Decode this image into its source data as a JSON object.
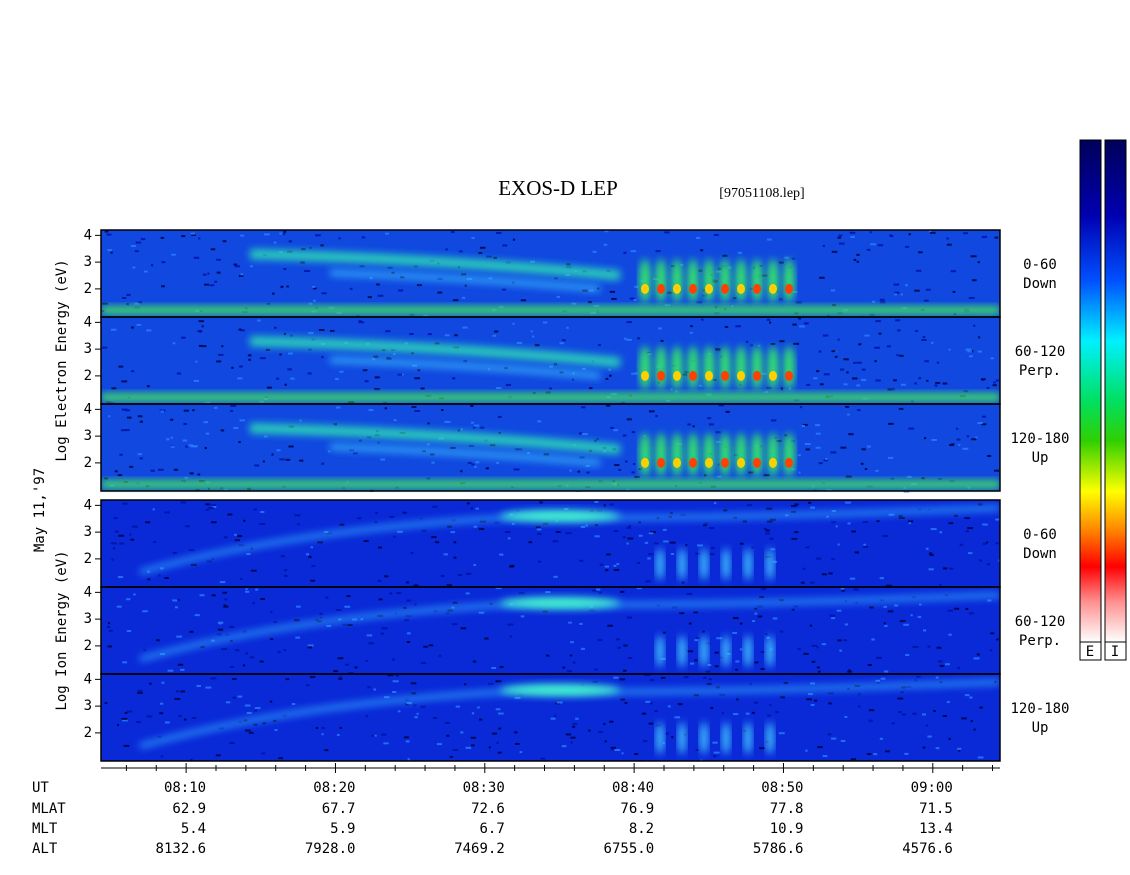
{
  "chart_data": {
    "type": "spectrogram",
    "title": "EXOS-D LEP",
    "subtitle": "[97051108.lep]",
    "date_label": "May 11,'97",
    "xlim": [
      4.3,
      64.5
    ],
    "xticks": [
      {
        "value": 10,
        "label": "08:10"
      },
      {
        "value": 20,
        "label": "08:20"
      },
      {
        "value": 30,
        "label": "08:30"
      },
      {
        "value": 40,
        "label": "08:40"
      },
      {
        "value": 50,
        "label": "08:50"
      },
      {
        "value": 60,
        "label": "09:00"
      }
    ],
    "xminorticks": [
      6,
      8,
      12,
      14,
      16,
      18,
      22,
      24,
      26,
      28,
      32,
      34,
      36,
      38,
      42,
      44,
      46,
      48,
      52,
      54,
      56,
      58,
      62,
      64
    ],
    "ephemeris": [
      {
        "name": "UT"
      },
      {
        "name": "MLAT",
        "values": [
          "62.9",
          "67.7",
          "72.6",
          "76.9",
          "77.8",
          "71.5"
        ]
      },
      {
        "name": "MLT",
        "values": [
          "5.4",
          "5.9",
          "6.7",
          "8.2",
          "10.9",
          "13.4"
        ]
      },
      {
        "name": "ALT",
        "values": [
          "8132.6",
          "7928.0",
          "7469.2",
          "6755.0",
          "5786.6",
          "4576.6"
        ]
      }
    ],
    "groups": [
      {
        "label": "Log  Electron  Energy (eV)",
        "panels": [
          {
            "pitch": "0-60",
            "direction": "Down",
            "ylim": [
              0.95,
              4.2
            ],
            "yticks": [
              2,
              3,
              4
            ]
          },
          {
            "pitch": "60-120",
            "direction": "Perp.",
            "ylim": [
              0.95,
              4.2
            ],
            "yticks": [
              2,
              3,
              4
            ]
          },
          {
            "pitch": "120-180",
            "direction": "Up",
            "ylim": [
              0.95,
              4.2
            ],
            "yticks": [
              2,
              3,
              4
            ]
          }
        ]
      },
      {
        "label": "Log  Ion  Energy (eV)",
        "panels": [
          {
            "pitch": "0-60",
            "direction": "Down",
            "ylim": [
              0.95,
              4.2
            ],
            "yticks": [
              2,
              3,
              4
            ]
          },
          {
            "pitch": "60-120",
            "direction": "Perp.",
            "ylim": [
              0.95,
              4.2
            ],
            "yticks": [
              2,
              3,
              4
            ]
          },
          {
            "pitch": "120-180",
            "direction": "Up",
            "ylim": [
              0.95,
              4.2
            ],
            "yticks": [
              2,
              3,
              4
            ]
          }
        ]
      }
    ],
    "colorbar_labels": [
      "E",
      "I"
    ]
  }
}
